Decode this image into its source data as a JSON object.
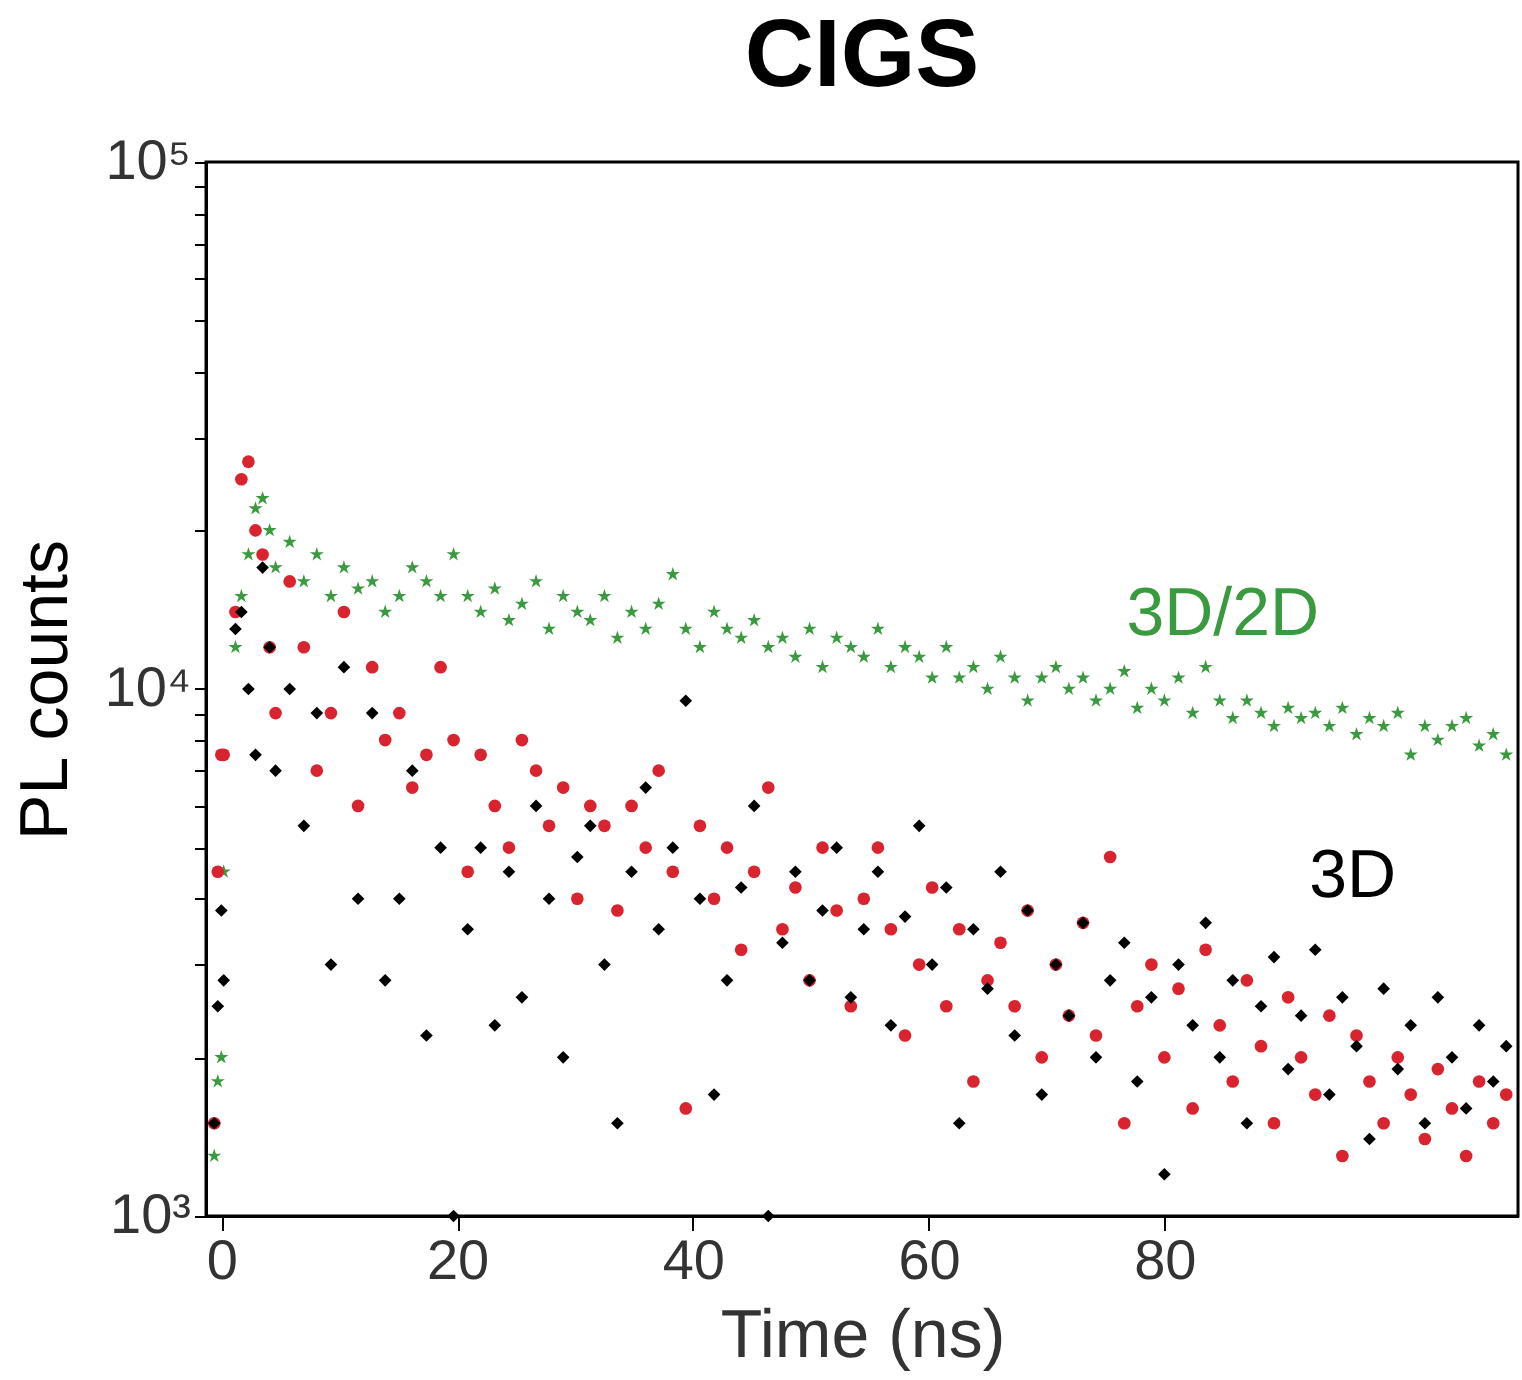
{
  "chart_data": {
    "type": "scatter",
    "title": "CIGS",
    "xlabel": "Time (ns)",
    "ylabel": "PL counts",
    "x": [
      -0.6,
      -0.3,
      0,
      0.2,
      1.2,
      1.7,
      2.3,
      2.9,
      3.5,
      4.1,
      4.6,
      5.8,
      7,
      8.1,
      9.3,
      10.4,
      11.6,
      12.8,
      13.9,
      15.1,
      16.2,
      17.4,
      18.6,
      19.7,
      20.9,
      22,
      23.2,
      24.4,
      25.5,
      26.7,
      27.8,
      29,
      30.2,
      31.3,
      32.5,
      33.6,
      34.8,
      36,
      37.1,
      38.3,
      39.4,
      40.6,
      41.8,
      42.9,
      44.1,
      45.2,
      46.4,
      47.6,
      48.7,
      49.9,
      51,
      52.2,
      53.4,
      54.5,
      55.7,
      56.8,
      58,
      59.2,
      60.3,
      61.5,
      62.6,
      63.8,
      65,
      66.1,
      67.3,
      68.4,
      69.6,
      70.8,
      71.9,
      73.1,
      74.2,
      75.4,
      76.6,
      77.7,
      78.9,
      80,
      81.2,
      82.4,
      83.5,
      84.7,
      85.8,
      87,
      88.2,
      89.3,
      90.5,
      91.6,
      92.8,
      94,
      95.1,
      96.3,
      97.4,
      98.6,
      99.8,
      100.9,
      102.1,
      103.2,
      104.4,
      105.6,
      106.7,
      107.9,
      109
    ],
    "series": [
      {
        "name": "3D/2D",
        "color": "#3a9a3f",
        "marker": "star",
        "values": [
          1300,
          1800,
          2000,
          4500,
          12000,
          15000,
          18000,
          22000,
          23000,
          20000,
          17000,
          19000,
          16000,
          18000,
          15000,
          17000,
          15500,
          16000,
          14000,
          15000,
          17000,
          16000,
          15000,
          18000,
          15000,
          14000,
          15500,
          13500,
          14500,
          16000,
          13000,
          15000,
          14000,
          13500,
          15000,
          12500,
          14000,
          13000,
          14500,
          16500,
          13000,
          12000,
          14000,
          13000,
          12500,
          13500,
          12000,
          12500,
          11500,
          13000,
          11000,
          12500,
          12000,
          11500,
          13000,
          11000,
          12000,
          11500,
          10500,
          12000,
          10500,
          11000,
          10000,
          11500,
          10500,
          9500,
          10500,
          11000,
          10000,
          10500,
          9500,
          10000,
          10800,
          9200,
          10000,
          9500,
          10500,
          9000,
          11000,
          9500,
          8800,
          9500,
          9000,
          8500,
          9200,
          8800,
          9000,
          8500,
          9200,
          8200,
          8800,
          8500,
          9000,
          7500,
          8500,
          8000,
          8500,
          8800,
          7800,
          8200,
          7500
        ]
      },
      {
        "color": "#d9232e",
        "marker": "circle",
        "values": [
          1500,
          4500,
          7500,
          7500,
          14000,
          25000,
          27000,
          20000,
          18000,
          12000,
          9000,
          16000,
          12000,
          7000,
          9000,
          14000,
          6000,
          11000,
          8000,
          9000,
          6500,
          7500,
          11000,
          8000,
          4500,
          7500,
          6000,
          5000,
          8000,
          7000,
          5500,
          6500,
          4000,
          6000,
          5500,
          3800,
          6000,
          5000,
          7000,
          4500,
          1600,
          5500,
          4000,
          5000,
          3200,
          4500,
          6500,
          3500,
          4200,
          2800,
          5000,
          3800,
          2500,
          4000,
          5000,
          3500,
          2200,
          3000,
          4200,
          2500,
          3500,
          1800,
          2800,
          3300,
          2500,
          3800,
          2000,
          3000,
          2400,
          3600,
          2200,
          4800,
          1500,
          2500,
          3000,
          2000,
          2700,
          1600,
          3200,
          2300,
          1800,
          2800,
          2100,
          1500,
          2600,
          2000,
          1700,
          2400,
          1300,
          2200,
          1800,
          1500,
          2000,
          1700,
          1400,
          1900,
          1600,
          1300,
          1800,
          1500,
          1700
        ]
      },
      {
        "name": "3D",
        "color": "#000000",
        "marker": "diamond",
        "values": [
          1500,
          2500,
          3800,
          2800,
          13000,
          14000,
          10000,
          7500,
          17000,
          12000,
          7000,
          10000,
          5500,
          9000,
          3000,
          11000,
          4000,
          9000,
          2800,
          4000,
          7000,
          2200,
          5000,
          1000,
          3500,
          5000,
          2300,
          4500,
          2600,
          6000,
          4000,
          2000,
          4800,
          5500,
          3000,
          1500,
          4500,
          6500,
          3500,
          5000,
          9500,
          4000,
          1700,
          2800,
          4200,
          6000,
          1000,
          3300,
          4500,
          2800,
          3800,
          5000,
          2600,
          3500,
          4500,
          2300,
          3700,
          5500,
          3000,
          4200,
          1500,
          3500,
          2700,
          4500,
          2200,
          3800,
          1700,
          3000,
          2400,
          3600,
          2000,
          2800,
          3300,
          1800,
          2600,
          1200,
          3000,
          2300,
          3600,
          2000,
          2800,
          1500,
          2500,
          3100,
          1900,
          2400,
          3200,
          1700,
          2600,
          2100,
          1400,
          2700,
          1900,
          2300,
          1500,
          2600,
          2000,
          1600,
          2300,
          1800,
          2100
        ]
      }
    ],
    "xlim": [
      -1.3,
      110
    ],
    "xticks": [
      0,
      20,
      40,
      60,
      80
    ],
    "ylim": [
      1000,
      100000
    ],
    "log": true,
    "yticks": [
      {
        "value": 1000,
        "label": "10³"
      },
      {
        "value": 2000,
        "label": null
      },
      {
        "value": 3000,
        "label": null
      },
      {
        "value": 4000,
        "label": null
      },
      {
        "value": 5000,
        "label": null
      },
      {
        "value": 6000,
        "label": null
      },
      {
        "value": 7000,
        "label": null
      },
      {
        "value": 8000,
        "label": null
      },
      {
        "value": 9000,
        "label": null
      },
      {
        "value": 10000,
        "label": "10⁴"
      },
      {
        "value": 20000,
        "label": null
      },
      {
        "value": 30000,
        "label": null
      },
      {
        "value": 40000,
        "label": null
      },
      {
        "value": 50000,
        "label": null
      },
      {
        "value": 60000,
        "label": null
      },
      {
        "value": 70000,
        "label": null
      },
      {
        "value": 80000,
        "label": null
      },
      {
        "value": 90000,
        "label": null
      },
      {
        "value": 100000,
        "label": "10⁵"
      }
    ],
    "grid": false
  }
}
